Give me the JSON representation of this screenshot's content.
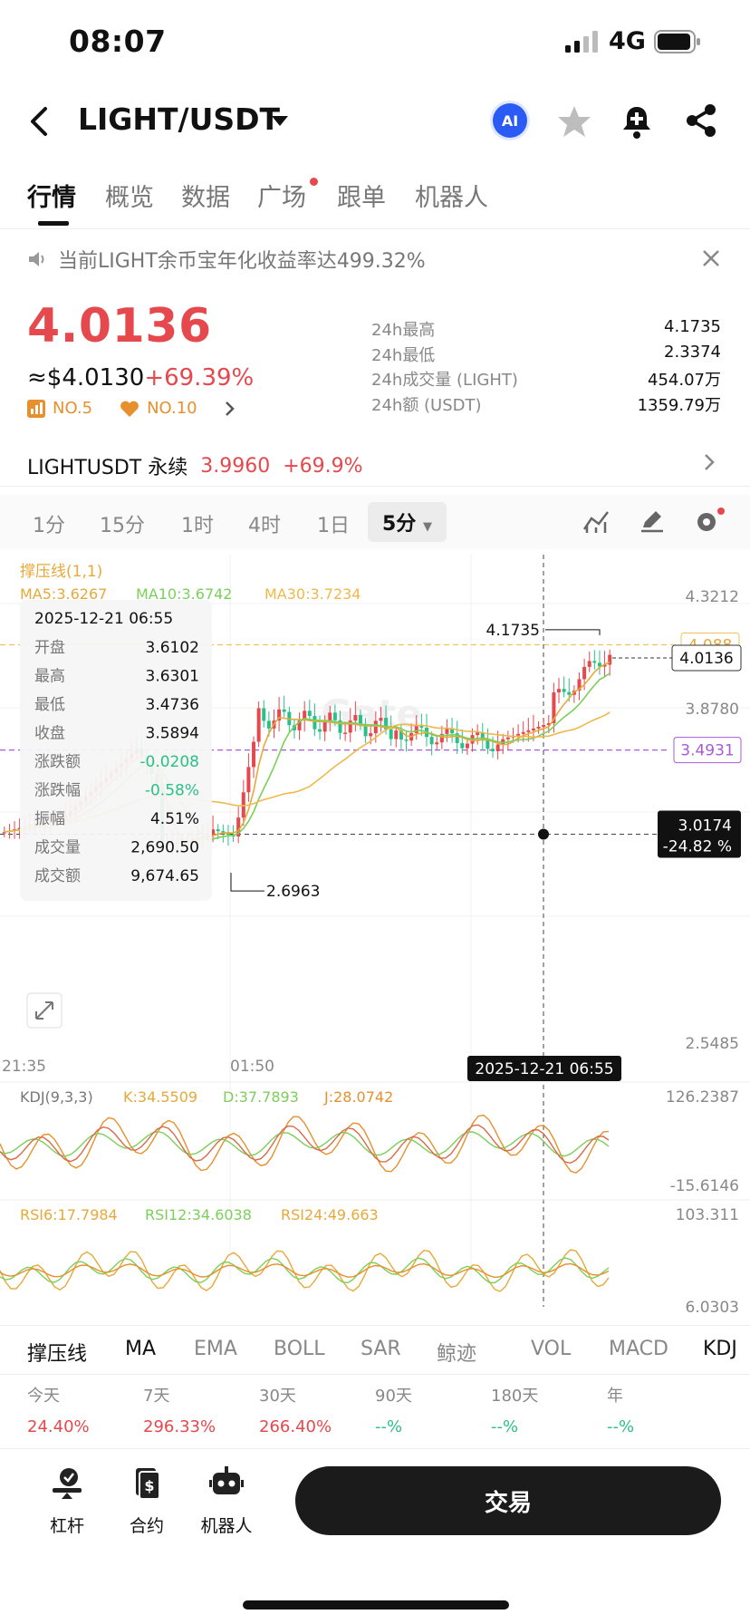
{
  "status": {
    "time": "08:07",
    "network": "4G"
  },
  "header": {
    "pair": "LIGHT/USDT",
    "ai_label": "AI"
  },
  "tabs": [
    {
      "label": "行情",
      "active": true
    },
    {
      "label": "概览"
    },
    {
      "label": "数据"
    },
    {
      "label": "广场",
      "dot": true
    },
    {
      "label": "跟单"
    },
    {
      "label": "机器人"
    }
  ],
  "notice": {
    "text": "当前LIGHT余币宝年化收益率达499.32%"
  },
  "ticker": {
    "price": "4.0136",
    "usd_prefix": "≈$4.0130",
    "change": "+69.39%",
    "rank1": "NO.5",
    "rank2": "NO.10"
  },
  "stats": [
    {
      "k": "24h最高",
      "v": "4.1735"
    },
    {
      "k": "24h最低",
      "v": "2.3374"
    },
    {
      "k": "24h成交量 (LIGHT)",
      "v": "454.07万"
    },
    {
      "k": "24h额 (USDT)",
      "v": "1359.79万"
    }
  ],
  "perp": {
    "name": "LIGHTUSDT 永续",
    "price": "3.9960",
    "change": "+69.9%"
  },
  "timeframes": [
    "1分",
    "15分",
    "1时",
    "4时",
    "1日"
  ],
  "timeframe_selected": "5分",
  "chart": {
    "support_label": "撑压线(1,1)",
    "ma_labels": [
      "MA5:3.6267",
      "MA10:3.6742",
      "MA30:3.7234"
    ],
    "right_ticks": [
      "4.3212",
      "3.8780",
      "2.5485"
    ],
    "current_price_tag": "4.0136",
    "level_088": "4.088",
    "level_purple": "3.4931",
    "cross_price": "3.0174",
    "cross_pct": "-24.82 %",
    "high_marker": "4.1735",
    "low_marker": "2.6963",
    "x_ticks": [
      "21:35",
      "01:50"
    ],
    "cross_time": "2025-12-21 06:55",
    "tooltip": {
      "time": "2025-12-21 06:55",
      "rows": [
        {
          "k": "开盘",
          "v": "3.6102"
        },
        {
          "k": "最高",
          "v": "3.6301"
        },
        {
          "k": "最低",
          "v": "3.4736"
        },
        {
          "k": "收盘",
          "v": "3.5894"
        },
        {
          "k": "涨跌额",
          "v": "-0.0208",
          "neg": true
        },
        {
          "k": "涨跌幅",
          "v": "-0.58%",
          "neg": true
        },
        {
          "k": "振幅",
          "v": "4.51%"
        },
        {
          "k": "成交量",
          "v": "2,690.50"
        },
        {
          "k": "成交额",
          "v": "9,674.65"
        }
      ]
    },
    "kdj": {
      "label": "KDJ(9,3,3)",
      "k": "K:34.5509",
      "d": "D:37.7893",
      "j": "J:28.0742",
      "top": "126.2387",
      "bottom": "-15.6146"
    },
    "rsi": {
      "r6": "RSI6:17.7984",
      "r12": "RSI12:34.6038",
      "r24": "RSI24:49.663",
      "top": "103.311",
      "bottom": "6.0303"
    },
    "colors": {
      "up": "#e5484d",
      "down": "#2bbf8a",
      "ma5": "#e6a93a",
      "ma10": "#7ccf5a",
      "ma30": "#efb94a",
      "purple": "#a55bd6"
    }
  },
  "indicators": [
    {
      "label": "撑压线",
      "active": true
    },
    {
      "label": "MA",
      "active": true
    },
    {
      "label": "EMA"
    },
    {
      "label": "BOLL"
    },
    {
      "label": "SAR"
    },
    {
      "label": "鲸迹"
    },
    {
      "label": "VOL"
    },
    {
      "label": "MACD"
    },
    {
      "label": "KDJ",
      "active": true
    }
  ],
  "performance": [
    {
      "label": "今天",
      "value": "24.40%",
      "color": "#e5484d"
    },
    {
      "label": "7天",
      "value": "296.33%",
      "color": "#e5484d"
    },
    {
      "label": "30天",
      "value": "266.40%",
      "color": "#e5484d"
    },
    {
      "label": "90天",
      "value": "--%",
      "color": "#2bbf8a"
    },
    {
      "label": "180天",
      "value": "--%",
      "color": "#2bbf8a"
    },
    {
      "label": "年",
      "value": "--%",
      "color": "#2bbf8a"
    }
  ],
  "bottom_nav": [
    {
      "label": "杠杆",
      "icon": "leverage-icon"
    },
    {
      "label": "合约",
      "icon": "contract-icon"
    },
    {
      "label": "机器人",
      "icon": "robot-icon"
    }
  ],
  "trade_button": "交易"
}
